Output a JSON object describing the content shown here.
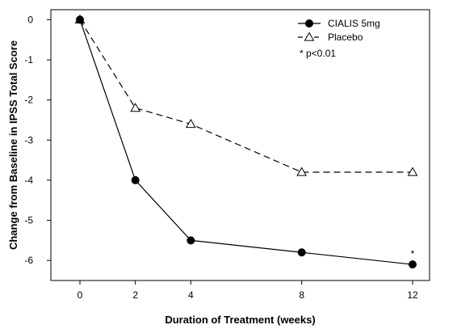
{
  "chart_data": {
    "type": "line",
    "title": "",
    "xlabel": "Duration of Treatment (weeks)",
    "ylabel": "Change from Baseline in IPSS Total Score",
    "x_ticks": [
      {
        "value": 0,
        "label": "0"
      },
      {
        "value": 2,
        "label": "2"
      },
      {
        "value": 4,
        "label": "4"
      },
      {
        "value": 8,
        "label": "8"
      },
      {
        "value": 12,
        "label": "12"
      }
    ],
    "y_ticks": [
      {
        "value": 0,
        "label": "0"
      },
      {
        "value": -1,
        "label": "-1"
      },
      {
        "value": -2,
        "label": "-2"
      },
      {
        "value": -3,
        "label": "-3"
      },
      {
        "value": -4,
        "label": "-4"
      },
      {
        "value": -5,
        "label": "-5"
      },
      {
        "value": -6,
        "label": "-6"
      }
    ],
    "ylim": [
      -6.5,
      0.25
    ],
    "grid": false,
    "legend_position": "top-right",
    "series": [
      {
        "name": "CIALIS 5mg",
        "color": "#000000",
        "line_style": "solid",
        "marker": "filled-circle",
        "points": [
          {
            "x": 0,
            "y": 0
          },
          {
            "x": 2,
            "y": -4.0
          },
          {
            "x": 4,
            "y": -5.5
          },
          {
            "x": 8,
            "y": -5.8
          },
          {
            "x": 12,
            "y": -6.1
          }
        ]
      },
      {
        "name": "Placebo",
        "color": "#000000",
        "line_style": "dashed",
        "marker": "open-triangle",
        "points": [
          {
            "x": 0,
            "y": 0
          },
          {
            "x": 2,
            "y": -2.2
          },
          {
            "x": 4,
            "y": -2.6
          },
          {
            "x": 8,
            "y": -3.8
          },
          {
            "x": 12,
            "y": -3.8
          }
        ]
      }
    ],
    "legend_note": "* p<0.01",
    "annotations": [
      {
        "text": "*",
        "x": 12,
        "y": -6.1
      }
    ]
  }
}
